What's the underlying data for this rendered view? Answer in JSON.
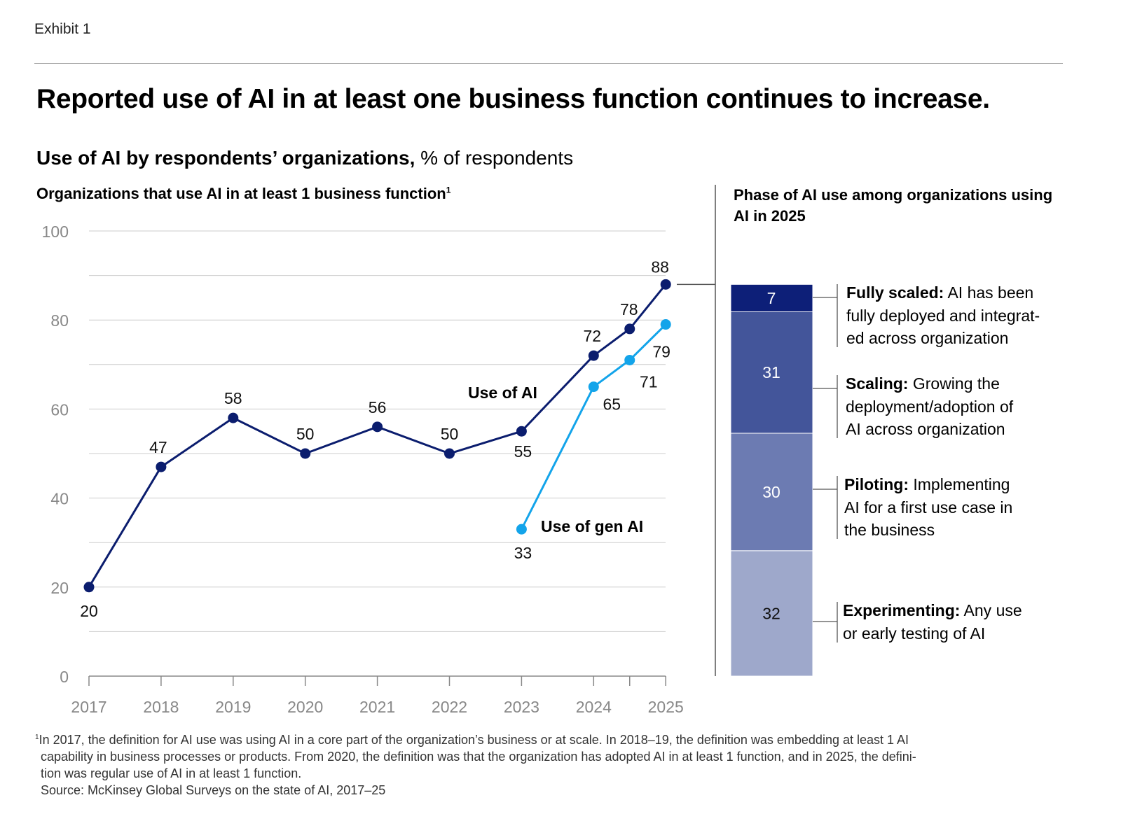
{
  "exhibit_label": "Exhibit 1",
  "title": "Reported use of AI in at least one business function continues to increase.",
  "subtitle_bold": "Use of AI by respondents’ organizations,",
  "subtitle_rest": " % of respondents",
  "footnote": {
    "marker": "1",
    "line1": "In 2017, the definition for AI use was using AI in a core part of the organization’s business or at scale. In 2018–19, the definition was embedding at least 1 AI",
    "line2": "capability in business processes or products. From 2020, the definition was that the organization has adopted AI in at least 1 function, and in 2025, the defini-",
    "line3": "tion was regular use of AI in at least 1 function.",
    "source": "Source: McKinsey Global Surveys on the state of AI, 2017–25"
  },
  "chart_data": [
    {
      "type": "line",
      "title": "Organizations that use AI in at least 1 business function",
      "title_footnote_marker": "1",
      "ylim": [
        0,
        100
      ],
      "yticks": [
        "0",
        "20",
        "40",
        "60",
        "80",
        "100"
      ],
      "ytick_values": [
        0,
        20,
        40,
        60,
        80,
        100
      ],
      "grid": true,
      "xticks": [
        "2017",
        "2018",
        "2019",
        "2020",
        "2021",
        "2022",
        "2023",
        "2024",
        "2025"
      ],
      "xtick_values": [
        2017,
        2018,
        2019,
        2020,
        2021,
        2022,
        2023,
        2024,
        2025
      ],
      "series": [
        {
          "name": "Use of AI",
          "color": "#0b1d6e",
          "x": [
            2017,
            2018,
            2019,
            2020,
            2021,
            2022,
            2023,
            2024,
            2024.5,
            2025
          ],
          "values": [
            20,
            47,
            58,
            50,
            56,
            50,
            55,
            72,
            78,
            88
          ],
          "labels": [
            "20",
            "47",
            "58",
            "50",
            "56",
            "50",
            "55",
            "72",
            "78",
            "88"
          ]
        },
        {
          "name": "Use of gen AI",
          "color": "#13a4ea",
          "x": [
            2023,
            2024,
            2024.5,
            2025
          ],
          "values": [
            33,
            65,
            71,
            79
          ],
          "labels": [
            "33",
            "65",
            "71",
            "79"
          ]
        }
      ]
    },
    {
      "type": "bar",
      "stacked": true,
      "title": "Phase of AI use among organizations using AI in 2025",
      "total": 88,
      "segments": [
        {
          "name": "Fully scaled:",
          "description": " AI has been fully deployed and integrat-ed across organization",
          "lines": [
            "AI has been",
            "fully deployed and integrat-",
            "ed across organization"
          ],
          "value": 7,
          "label": "7",
          "color": "#0d1f78"
        },
        {
          "name": "Scaling:",
          "description": " Growing the deployment/adoption of AI across organization",
          "lines": [
            "Growing the",
            "deployment/adoption of",
            "AI across organization"
          ],
          "value": 31,
          "label": "31",
          "color": "#43559a"
        },
        {
          "name": "Piloting:",
          "description": " Implementing AI for a first use case in the business",
          "lines": [
            "Implementing",
            "AI for a first use case in",
            "the business"
          ],
          "value": 30,
          "label": "30",
          "color": "#6c7bb2"
        },
        {
          "name": "Experimenting:",
          "description": " Any use or early testing of AI",
          "lines": [
            "Any use",
            "or early testing of AI"
          ],
          "value": 32,
          "label": "32",
          "color": "#9ea8cb"
        }
      ]
    }
  ]
}
